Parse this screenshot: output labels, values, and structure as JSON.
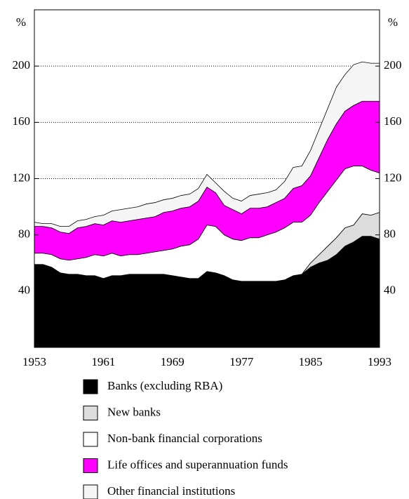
{
  "chart_data": {
    "type": "stacked_area",
    "y_label": "%",
    "x": [
      1953,
      1954,
      1955,
      1956,
      1957,
      1958,
      1959,
      1960,
      1961,
      1962,
      1963,
      1964,
      1965,
      1966,
      1967,
      1968,
      1969,
      1970,
      1971,
      1972,
      1973,
      1974,
      1975,
      1976,
      1977,
      1978,
      1979,
      1980,
      1981,
      1982,
      1983,
      1984,
      1985,
      1986,
      1987,
      1988,
      1989,
      1990,
      1991,
      1992,
      1993
    ],
    "xlim": [
      1953,
      1993
    ],
    "xticks": [
      1953,
      1961,
      1969,
      1977,
      1985,
      1993
    ],
    "ylim": [
      0,
      240
    ],
    "yticks": [
      40,
      80,
      120,
      160,
      200
    ],
    "grid": true,
    "series": [
      {
        "name": "Banks (excluding RBA)",
        "color": "#000000",
        "values": [
          59,
          59,
          57,
          53,
          52,
          52,
          51,
          51,
          49,
          51,
          51,
          52,
          52,
          52,
          52,
          52,
          51,
          50,
          49,
          49,
          54,
          53,
          51,
          48,
          47,
          47,
          47,
          47,
          47,
          48,
          51,
          52,
          57,
          60,
          62,
          66,
          72,
          75,
          79,
          79,
          77
        ]
      },
      {
        "name": "New banks",
        "color": "#dcdcdc",
        "values": [
          0,
          0,
          0,
          0,
          0,
          0,
          0,
          0,
          0,
          0,
          0,
          0,
          0,
          0,
          0,
          0,
          0,
          0,
          0,
          0,
          0,
          0,
          0,
          0,
          0,
          0,
          0,
          0,
          0,
          0,
          0,
          0,
          3,
          6,
          10,
          12,
          13,
          12,
          16,
          15,
          19
        ]
      },
      {
        "name": "Non-bank financial corporations",
        "color": "#ffffff",
        "values": [
          8,
          8,
          9,
          10,
          10,
          11,
          13,
          15,
          16,
          16,
          14,
          14,
          14,
          15,
          16,
          17,
          19,
          22,
          24,
          28,
          33,
          33,
          29,
          29,
          29,
          31,
          31,
          33,
          35,
          37,
          38,
          37,
          34,
          37,
          39,
          41,
          42,
          42,
          34,
          32,
          28
        ]
      },
      {
        "name": "Life offices and superannuation funds",
        "color": "#ff00ff",
        "values": [
          19,
          19,
          19,
          19,
          19,
          22,
          22,
          22,
          22,
          23,
          24,
          24,
          25,
          25,
          25,
          27,
          27,
          27,
          27,
          27,
          27,
          24,
          21,
          21,
          19,
          21,
          21,
          20,
          21,
          21,
          24,
          26,
          28,
          32,
          37,
          40,
          41,
          43,
          46,
          49,
          51
        ]
      },
      {
        "name": "Other financial institutions",
        "color": "#f5f5f5",
        "values": [
          3,
          2,
          3,
          4,
          5,
          5,
          5,
          5,
          7,
          7,
          9,
          9,
          9,
          10,
          10,
          9,
          9,
          9,
          9,
          9,
          9,
          7,
          10,
          8,
          9,
          9,
          10,
          10,
          9,
          12,
          15,
          14,
          18,
          20,
          22,
          26,
          26,
          29,
          28,
          27,
          27
        ]
      }
    ]
  }
}
